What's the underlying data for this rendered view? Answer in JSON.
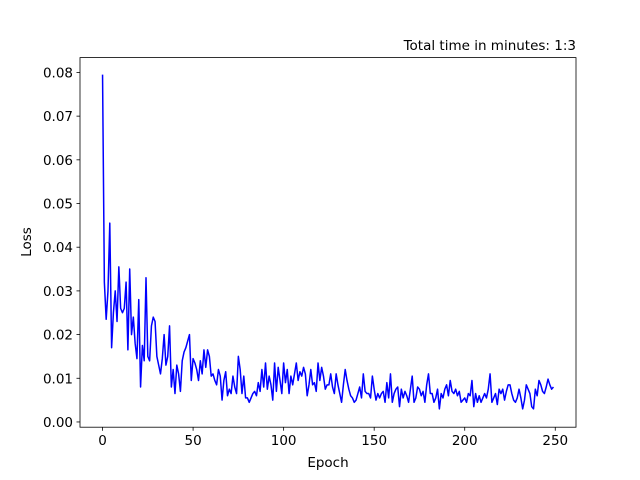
{
  "chart_data": {
    "type": "line",
    "title": "Total time in minutes: 1:3",
    "xlabel": "Epoch",
    "ylabel": "Loss",
    "xlim": [
      -12.45,
      261.45
    ],
    "ylim": [
      -0.0012,
      0.0834
    ],
    "xticks": [
      0,
      50,
      100,
      150,
      200,
      250
    ],
    "yticks": [
      {
        "value": 0,
        "label": "0.00"
      },
      0.01,
      0.02,
      0.03,
      0.04,
      0.05,
      0.06,
      0.07,
      0.08
    ],
    "grid": false,
    "x": [
      0,
      1,
      2,
      3,
      4,
      5,
      6,
      7,
      8,
      9,
      10,
      11,
      12,
      13,
      14,
      15,
      16,
      17,
      18,
      19,
      20,
      21,
      22,
      23,
      24,
      25,
      26,
      27,
      28,
      29,
      30,
      31,
      32,
      33,
      34,
      35,
      36,
      37,
      38,
      39,
      40,
      41,
      42,
      43,
      44,
      45,
      46,
      47,
      48,
      49,
      50,
      51,
      52,
      53,
      54,
      55,
      56,
      57,
      58,
      59,
      60,
      61,
      62,
      63,
      64,
      65,
      66,
      67,
      68,
      69,
      70,
      71,
      72,
      73,
      74,
      75,
      76,
      77,
      78,
      79,
      80,
      81,
      82,
      83,
      84,
      85,
      86,
      87,
      88,
      89,
      90,
      91,
      92,
      93,
      94,
      95,
      96,
      97,
      98,
      99,
      100,
      101,
      102,
      103,
      104,
      105,
      106,
      107,
      108,
      109,
      110,
      111,
      112,
      113,
      114,
      115,
      116,
      117,
      118,
      119,
      120,
      121,
      122,
      123,
      124,
      125,
      126,
      127,
      128,
      129,
      130,
      131,
      132,
      133,
      134,
      135,
      136,
      137,
      138,
      139,
      140,
      141,
      142,
      143,
      144,
      145,
      146,
      147,
      148,
      149,
      150,
      151,
      152,
      153,
      154,
      155,
      156,
      157,
      158,
      159,
      160,
      161,
      162,
      163,
      164,
      165,
      166,
      167,
      168,
      169,
      170,
      171,
      172,
      173,
      174,
      175,
      176,
      177,
      178,
      179,
      180,
      181,
      182,
      183,
      184,
      185,
      186,
      187,
      188,
      189,
      190,
      191,
      192,
      193,
      194,
      195,
      196,
      197,
      198,
      199,
      200,
      201,
      202,
      203,
      204,
      205,
      206,
      207,
      208,
      209,
      210,
      211,
      212,
      213,
      214,
      215,
      216,
      217,
      218,
      219,
      220,
      221,
      222,
      223,
      224,
      225,
      226,
      227,
      228,
      229,
      230,
      231,
      232,
      233,
      234,
      235,
      236,
      237,
      238,
      239,
      240,
      241,
      242,
      243,
      244,
      245,
      246,
      247,
      248,
      249
    ],
    "series": [
      {
        "color": "#0000ff",
        "values": [
          0.0795,
          0.032,
          0.0235,
          0.03,
          0.0455,
          0.017,
          0.025,
          0.03,
          0.023,
          0.0355,
          0.026,
          0.025,
          0.026,
          0.032,
          0.0165,
          0.035,
          0.02,
          0.024,
          0.018,
          0.0145,
          0.028,
          0.008,
          0.0175,
          0.014,
          0.033,
          0.015,
          0.014,
          0.022,
          0.024,
          0.023,
          0.015,
          0.013,
          0.011,
          0.0145,
          0.02,
          0.013,
          0.015,
          0.022,
          0.008,
          0.012,
          0.0065,
          0.013,
          0.011,
          0.007,
          0.014,
          0.016,
          0.017,
          0.0185,
          0.02,
          0.0095,
          0.0145,
          0.0135,
          0.012,
          0.0095,
          0.014,
          0.011,
          0.0165,
          0.0125,
          0.0165,
          0.015,
          0.0105,
          0.011,
          0.0095,
          0.0085,
          0.012,
          0.0105,
          0.005,
          0.0095,
          0.0115,
          0.006,
          0.0075,
          0.0065,
          0.0105,
          0.008,
          0.0065,
          0.015,
          0.012,
          0.0065,
          0.0105,
          0.0055,
          0.0055,
          0.0045,
          0.0055,
          0.0065,
          0.007,
          0.006,
          0.009,
          0.007,
          0.012,
          0.008,
          0.0135,
          0.0075,
          0.0105,
          0.0085,
          0.005,
          0.0135,
          0.007,
          0.0125,
          0.0095,
          0.0065,
          0.0135,
          0.009,
          0.012,
          0.0065,
          0.0105,
          0.0085,
          0.011,
          0.0135,
          0.0095,
          0.0115,
          0.0105,
          0.0125,
          0.011,
          0.006,
          0.0085,
          0.012,
          0.0085,
          0.009,
          0.007,
          0.0135,
          0.0095,
          0.0125,
          0.0105,
          0.0075,
          0.0085,
          0.0085,
          0.011,
          0.008,
          0.0065,
          0.011,
          0.0085,
          0.0065,
          0.0045,
          0.0085,
          0.012,
          0.0095,
          0.0075,
          0.006,
          0.0055,
          0.0045,
          0.005,
          0.0065,
          0.008,
          0.0055,
          0.011,
          0.007,
          0.0065,
          0.0065,
          0.0055,
          0.0105,
          0.0075,
          0.005,
          0.0065,
          0.0055,
          0.0065,
          0.007,
          0.0045,
          0.009,
          0.0055,
          0.011,
          0.0045,
          0.0065,
          0.0075,
          0.008,
          0.0035,
          0.0075,
          0.0055,
          0.007,
          0.006,
          0.0045,
          0.0075,
          0.0105,
          0.0045,
          0.0055,
          0.008,
          0.0075,
          0.006,
          0.007,
          0.0045,
          0.0085,
          0.011,
          0.0065,
          0.0065,
          0.0045,
          0.0055,
          0.0075,
          0.003,
          0.0065,
          0.0055,
          0.0075,
          0.0085,
          0.006,
          0.0095,
          0.007,
          0.0065,
          0.0075,
          0.006,
          0.007,
          0.0045,
          0.005,
          0.0055,
          0.0045,
          0.0065,
          0.006,
          0.0095,
          0.0035,
          0.0065,
          0.0045,
          0.006,
          0.0045,
          0.0055,
          0.0065,
          0.0055,
          0.0075,
          0.011,
          0.0045,
          0.0055,
          0.0065,
          0.004,
          0.0075,
          0.0065,
          0.0075,
          0.005,
          0.007,
          0.0085,
          0.0085,
          0.0065,
          0.005,
          0.0045,
          0.0055,
          0.0075,
          0.0055,
          0.003,
          0.005,
          0.0085,
          0.0075,
          0.0065,
          0.0035,
          0.003,
          0.0075,
          0.006,
          0.0095,
          0.0085,
          0.007,
          0.0065,
          0.008,
          0.0098,
          0.0085,
          0.0075,
          0.008
        ]
      }
    ]
  }
}
